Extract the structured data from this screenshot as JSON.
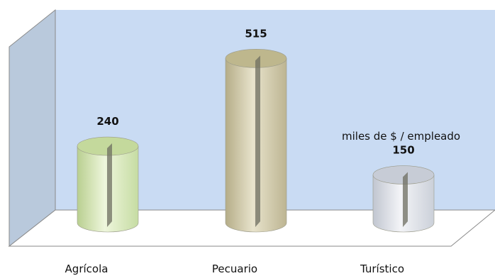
{
  "chart_data": {
    "type": "bar",
    "style": "3d-cylinder",
    "categories": [
      "Agrícola",
      "Pecuario",
      "Turístico"
    ],
    "values": [
      240,
      515,
      150
    ],
    "annotation": "miles de $ / empleado",
    "ylim": [
      0,
      600
    ],
    "grid": false,
    "legend": "none",
    "colors": {
      "wall": "#c9dbf3",
      "wall_side": "#b7c7db",
      "floor": "#ffffff",
      "bars": [
        "#d7e7b8",
        "#cdc6a5",
        "#dde1e8"
      ],
      "bar_tops": [
        "#c4d99c",
        "#beb78d",
        "#c7ccd6"
      ],
      "stripe": "#6e6e60"
    }
  }
}
